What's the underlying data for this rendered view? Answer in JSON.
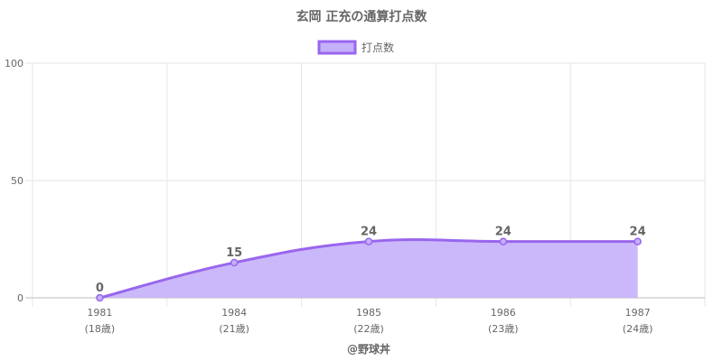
{
  "chart_data": {
    "type": "area",
    "title": "玄岡 正充の通算打点数",
    "legend": {
      "label": "打点数",
      "position": "top"
    },
    "categories": [
      "1981",
      "1984",
      "1985",
      "1986",
      "1987"
    ],
    "categories_sub": [
      "(18歳)",
      "(21歳)",
      "(22歳)",
      "(23歳)",
      "(24歳)"
    ],
    "series": [
      {
        "name": "打点数",
        "values": [
          0,
          15,
          24,
          24,
          24
        ]
      }
    ],
    "data_labels": [
      "0",
      "15",
      "24",
      "24",
      "24"
    ],
    "y_ticks": [
      "0",
      "50",
      "100"
    ],
    "ylim": [
      0,
      100
    ],
    "grid": true,
    "colors": {
      "line": "#9966ee",
      "fill": "#c5b0fa",
      "grid": "#e6e6e6",
      "axis": "#bdbdbd"
    }
  },
  "credit": "@野球丼"
}
